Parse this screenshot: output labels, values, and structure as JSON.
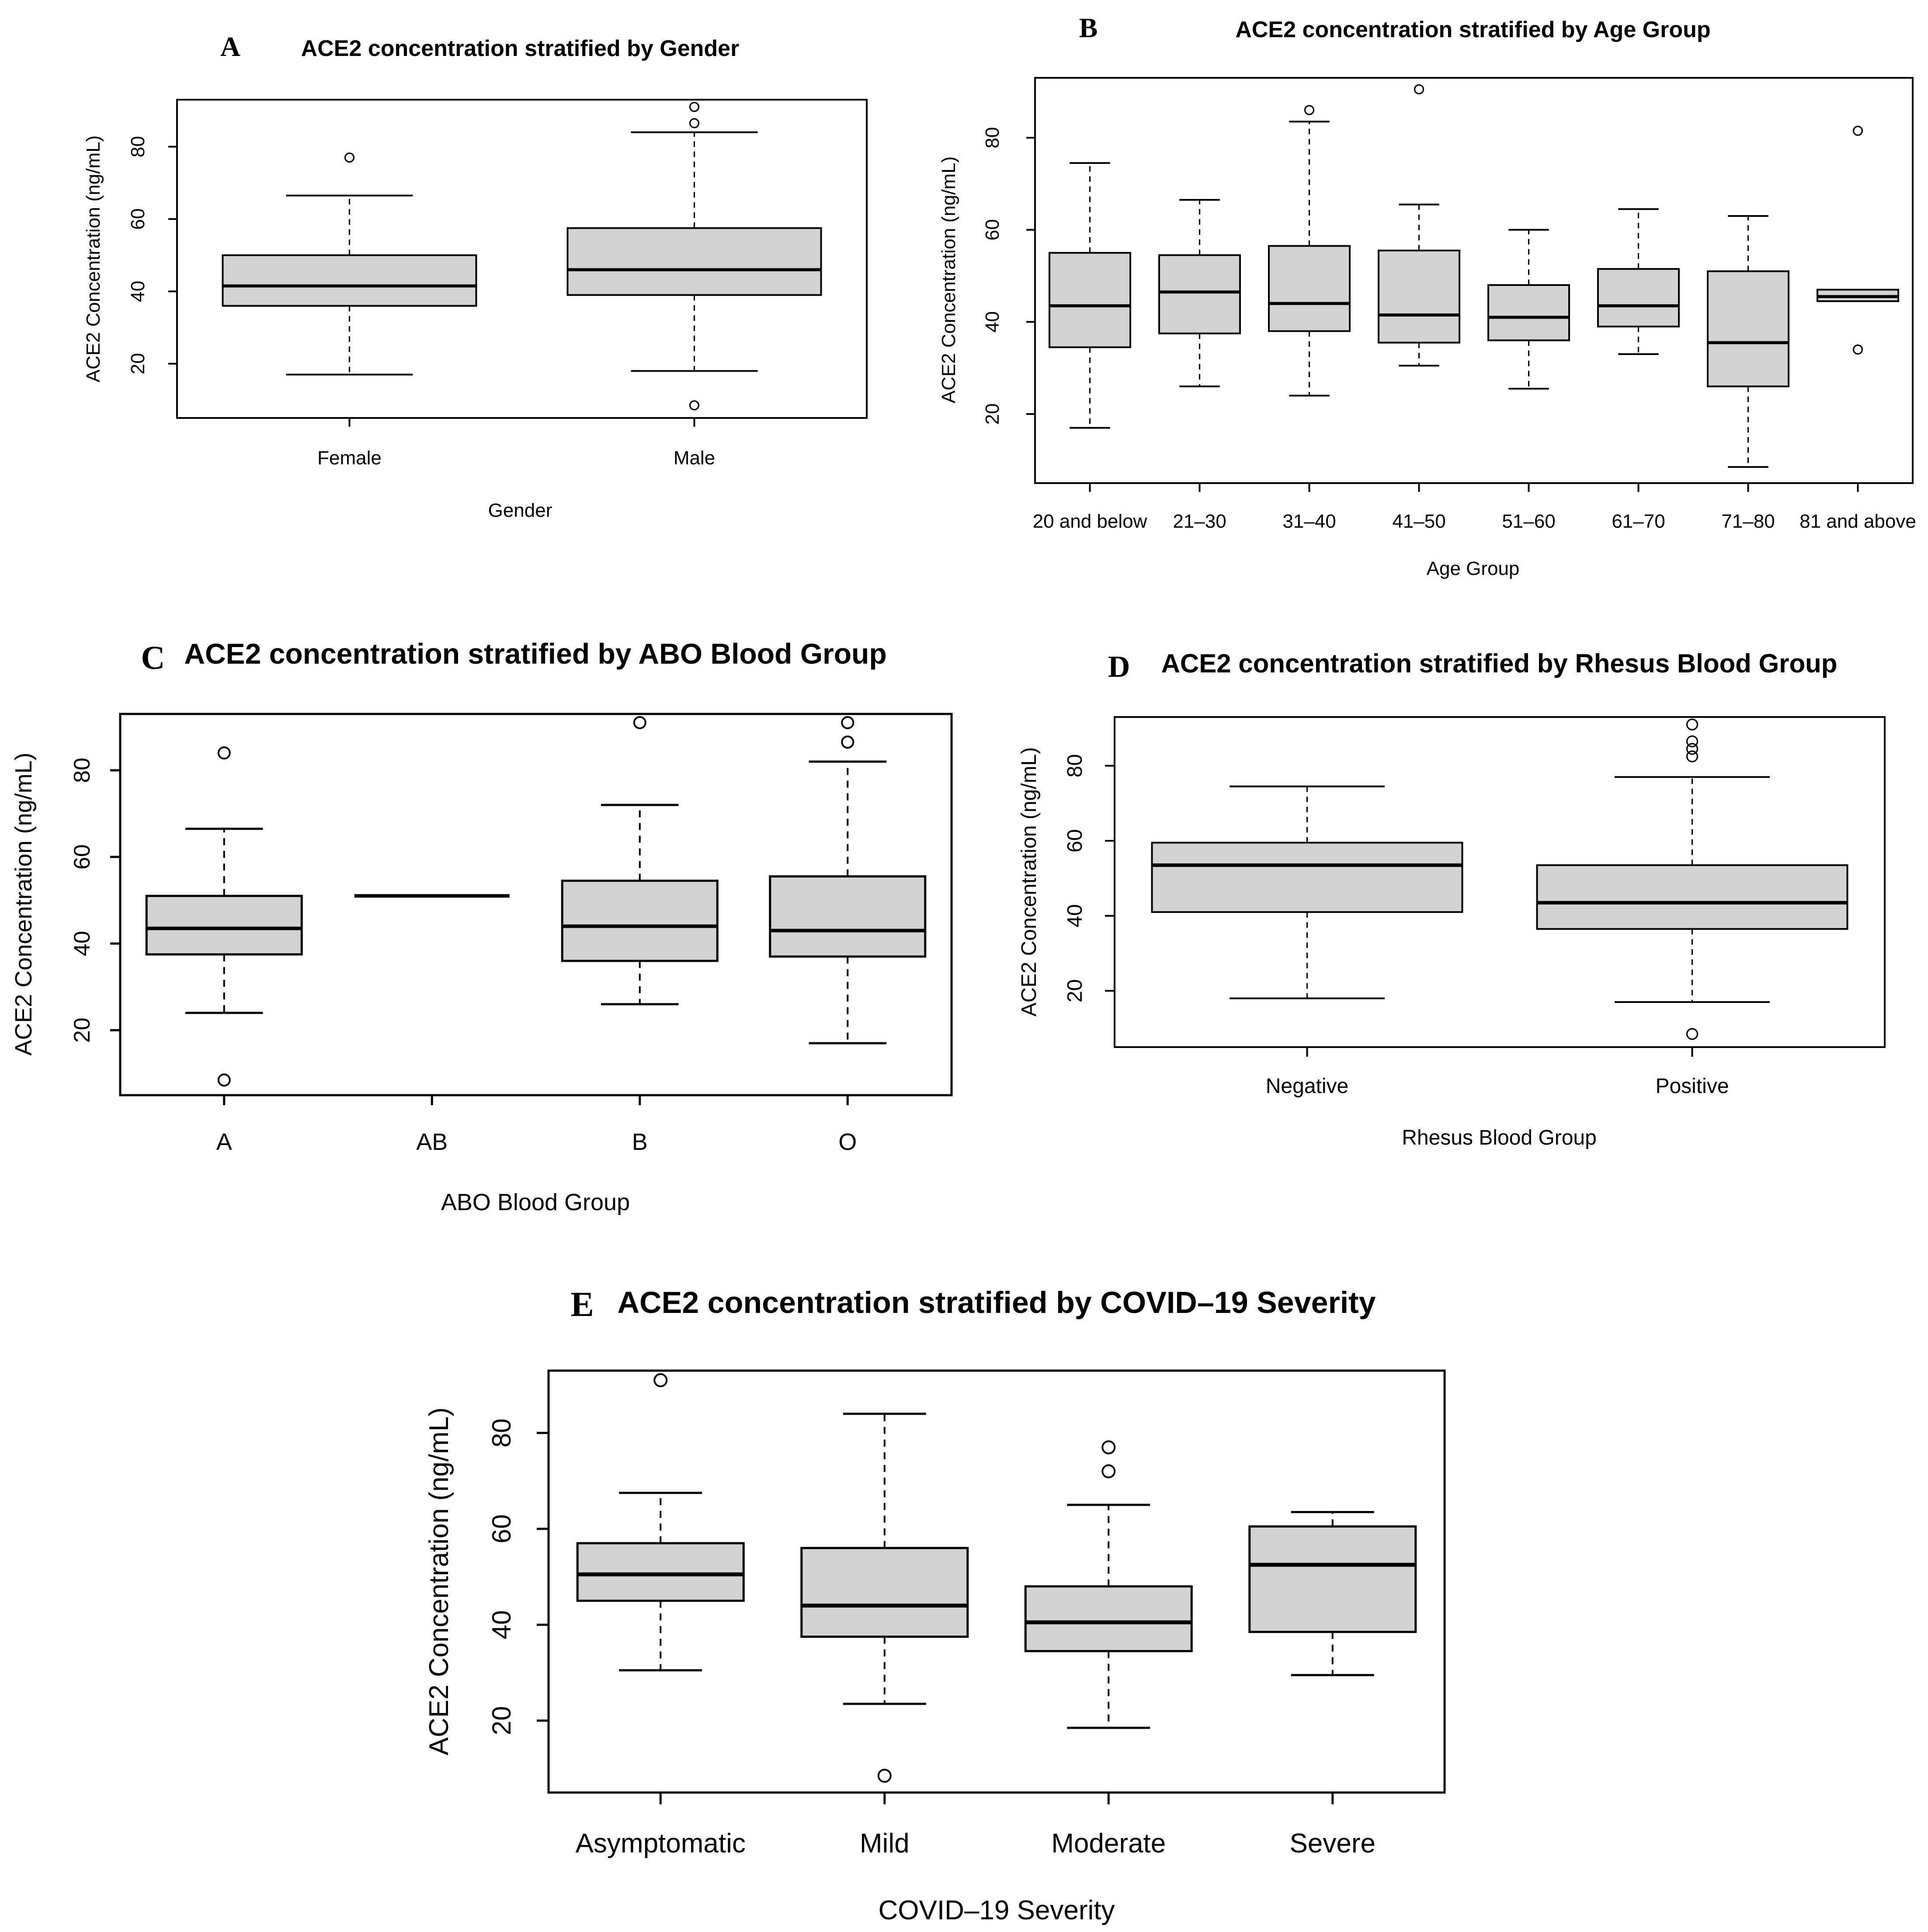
{
  "chart_data": [
    {
      "type": "box",
      "panel_label": "A",
      "title": "ACE2 concentration stratified by Gender",
      "xlabel": "Gender",
      "ylabel": "ACE2 Concentration (ng/mL)",
      "yticks": [
        20,
        40,
        60,
        80
      ],
      "ylim": [
        5,
        93
      ],
      "categories": [
        "Female",
        "Male"
      ],
      "boxes": [
        {
          "whisker_low": 17,
          "q1": 36,
          "median": 41.5,
          "q3": 50,
          "whisker_high": 66.5,
          "outliers": [
            77
          ]
        },
        {
          "whisker_low": 18,
          "q1": 39,
          "median": 46,
          "q3": 57.5,
          "whisker_high": 84,
          "outliers": [
            8.5,
            86.5,
            91
          ]
        }
      ]
    },
    {
      "type": "box",
      "panel_label": "B",
      "title": "ACE2 concentration stratified by Age Group",
      "xlabel": "Age Group",
      "ylabel": "ACE2 Concentration (ng/mL)",
      "yticks": [
        20,
        40,
        60,
        80
      ],
      "ylim": [
        5,
        93
      ],
      "categories": [
        "20 and below",
        "21–30",
        "31–40",
        "41–50",
        "51–60",
        "61–70",
        "71–80",
        "81 and above"
      ],
      "boxes": [
        {
          "whisker_low": 17,
          "q1": 34.5,
          "median": 43.5,
          "q3": 55,
          "whisker_high": 74.5,
          "outliers": []
        },
        {
          "whisker_low": 26,
          "q1": 37.5,
          "median": 46.5,
          "q3": 54.5,
          "whisker_high": 66.5,
          "outliers": []
        },
        {
          "whisker_low": 24,
          "q1": 38,
          "median": 44,
          "q3": 56.5,
          "whisker_high": 83.5,
          "outliers": [
            86
          ]
        },
        {
          "whisker_low": 30.5,
          "q1": 35.5,
          "median": 41.5,
          "q3": 55.5,
          "whisker_high": 65.5,
          "outliers": [
            90.5
          ]
        },
        {
          "whisker_low": 25.5,
          "q1": 36,
          "median": 41,
          "q3": 48,
          "whisker_high": 60,
          "outliers": []
        },
        {
          "whisker_low": 33,
          "q1": 39,
          "median": 43.5,
          "q3": 51.5,
          "whisker_high": 64.5,
          "outliers": []
        },
        {
          "whisker_low": 8.5,
          "q1": 26,
          "median": 35.5,
          "q3": 51,
          "whisker_high": 63,
          "outliers": []
        },
        {
          "whisker_low": 44.5,
          "q1": 44.5,
          "median": 45.5,
          "q3": 47,
          "whisker_high": 47,
          "outliers": [
            34,
            81.5
          ]
        }
      ]
    },
    {
      "type": "box",
      "panel_label": "C",
      "title": "ACE2 concentration stratified by ABO Blood Group",
      "xlabel": "ABO Blood Group",
      "ylabel": "ACE2 Concentration (ng/mL)",
      "yticks": [
        20,
        40,
        60,
        80
      ],
      "ylim": [
        5,
        93
      ],
      "categories": [
        "A",
        "AB",
        "B",
        "O"
      ],
      "boxes": [
        {
          "whisker_low": 24,
          "q1": 37.5,
          "median": 43.5,
          "q3": 51,
          "whisker_high": 66.5,
          "outliers": [
            8.5,
            84
          ]
        },
        {
          "whisker_low": 51,
          "q1": 51,
          "median": 51,
          "q3": 51,
          "whisker_high": 51,
          "outliers": []
        },
        {
          "whisker_low": 26,
          "q1": 36,
          "median": 44,
          "q3": 54.5,
          "whisker_high": 72,
          "outliers": [
            91
          ]
        },
        {
          "whisker_low": 17,
          "q1": 37,
          "median": 43,
          "q3": 55.5,
          "whisker_high": 82,
          "outliers": [
            86.5,
            91
          ]
        }
      ]
    },
    {
      "type": "box",
      "panel_label": "D",
      "title": "ACE2 concentration stratified by Rhesus Blood Group",
      "xlabel": "Rhesus Blood Group",
      "ylabel": "ACE2 Concentration (ng/mL)",
      "yticks": [
        20,
        40,
        60,
        80
      ],
      "ylim": [
        5,
        93
      ],
      "categories": [
        "Negative",
        "Positive"
      ],
      "boxes": [
        {
          "whisker_low": 18,
          "q1": 41,
          "median": 53.5,
          "q3": 59.5,
          "whisker_high": 74.5,
          "outliers": []
        },
        {
          "whisker_low": 17,
          "q1": 36.5,
          "median": 43.5,
          "q3": 53.5,
          "whisker_high": 77,
          "outliers": [
            8.5,
            82.5,
            84.5,
            86.5,
            91
          ]
        }
      ]
    },
    {
      "type": "box",
      "panel_label": "E",
      "title": "ACE2 concentration stratified by COVID–19 Severity",
      "xlabel": "COVID–19 Severity",
      "ylabel": "ACE2 Concentration (ng/mL)",
      "yticks": [
        20,
        40,
        60,
        80
      ],
      "ylim": [
        5,
        93
      ],
      "categories": [
        "Asymptomatic",
        "Mild",
        "Moderate",
        "Severe"
      ],
      "boxes": [
        {
          "whisker_low": 30.5,
          "q1": 45,
          "median": 50.5,
          "q3": 57,
          "whisker_high": 67.5,
          "outliers": [
            91
          ]
        },
        {
          "whisker_low": 23.5,
          "q1": 37.5,
          "median": 44,
          "q3": 56,
          "whisker_high": 84,
          "outliers": [
            8.5
          ]
        },
        {
          "whisker_low": 18.5,
          "q1": 34.5,
          "median": 40.5,
          "q3": 48,
          "whisker_high": 65,
          "outliers": [
            72,
            77
          ]
        },
        {
          "whisker_low": 29.5,
          "q1": 38.5,
          "median": 52.5,
          "q3": 60.5,
          "whisker_high": 63.5,
          "outliers": []
        }
      ]
    }
  ]
}
